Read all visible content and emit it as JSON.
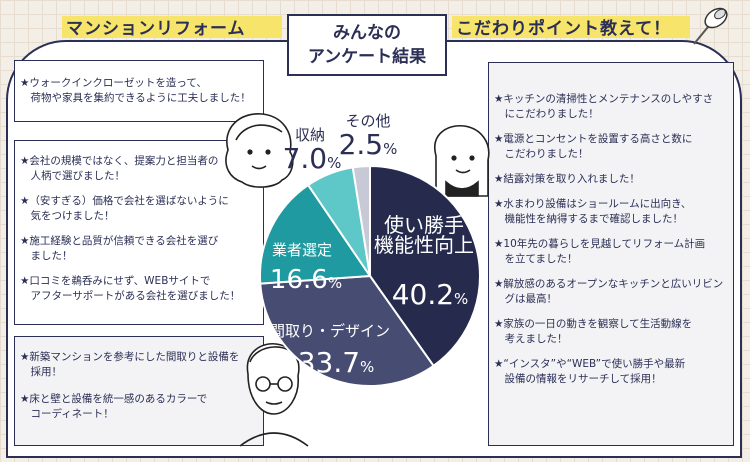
{
  "header": {
    "left_title": "マンションリフォーム",
    "center_title_line1": "みんなの",
    "center_title_line2": "アンケート結果",
    "right_title": "こだわりポイント教えて！"
  },
  "left_top_items": [
    [
      "★ウォークインクローゼットを造って、",
      "　荷物や家具を集約できるように工夫しました！"
    ]
  ],
  "left_mid_items": [
    [
      "★会社の規模ではなく、提案力と担当者の",
      "　人柄で選びました！"
    ],
    [
      "★（安すぎる）価格で会社を選ばないように",
      "　気をつけました！"
    ],
    [
      "★施工経験と品質が信頼できる会社を選び",
      "　ました！"
    ],
    [
      "★口コミを鵜呑みにせず、WEBサイトで",
      "　アフターサポートがある会社を選びました！"
    ]
  ],
  "left_bottom_items": [
    [
      "★新築マンションを参考にした間取りと設備を",
      "　採用！"
    ],
    [
      "★床と壁と設備を統一感のあるカラーで",
      "　コーディネート！"
    ]
  ],
  "right_items": [
    [
      "★キッチンの清掃性とメンテナンスのしやすさ",
      "　にこだわりました！"
    ],
    [
      "★電源とコンセントを設置する高さと数に",
      "　こだわりました！"
    ],
    [
      "★結露対策を取り入れました！"
    ],
    [
      "★水まわり設備はショールームに出向き、",
      "　機能性を納得するまで確認しました！"
    ],
    [
      "★10年先の暮らしを見越してリフォーム計画",
      "　を立てました！"
    ],
    [
      "★解放感のあるオープンなキッチンと広いリビン",
      "　グは最高！"
    ],
    [
      "★家族の一日の動きを観察して生活動線を",
      "　考えました！"
    ],
    [
      "★“インスタ”や“WEB”で使い勝手や最新",
      "　設備の情報をリサーチして採用！"
    ]
  ],
  "chart_data": {
    "type": "pie",
    "slices": [
      {
        "label": "使い勝手\n機能性向上",
        "value": 40.2,
        "display": "40.2",
        "color": "#262b4e"
      },
      {
        "label": "間取り・デザイン",
        "value": 33.7,
        "display": "33.7",
        "color": "#474c73"
      },
      {
        "label": "業者選定",
        "value": 16.6,
        "display": "16.6",
        "color": "#1f9aa0"
      },
      {
        "label": "収納",
        "value": 7.0,
        "display": "7.0",
        "color": "#5ec7c8"
      },
      {
        "label": "その他",
        "value": 2.5,
        "display": "2.5",
        "color": "#c7c9d6"
      }
    ],
    "unit": "%"
  },
  "colors": {
    "navy": "#2b2f55",
    "yellow": "#f7e46a",
    "background": "#f4efe6"
  }
}
